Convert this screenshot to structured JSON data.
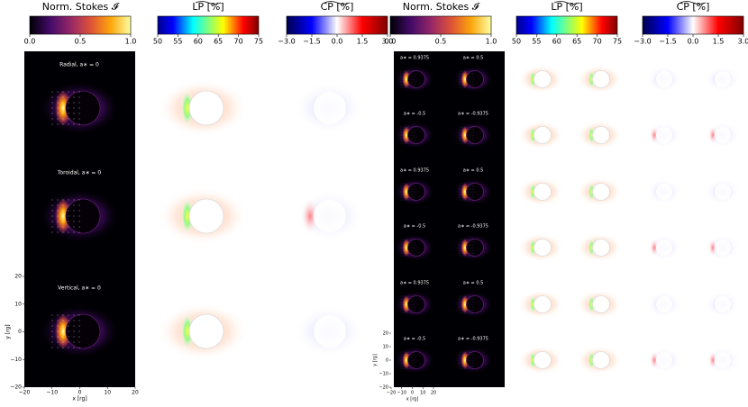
{
  "colorbars": [
    {
      "title": "Norm. Stokes 𝓘",
      "cmap": "inferno",
      "lim": [
        0,
        1
      ],
      "ticks": [
        {
          "value": 0,
          "label": "0.0"
        },
        0.5,
        {
          "value": 1,
          "label": "1.0"
        }
      ]
    },
    {
      "title": "LP [%]",
      "cmap": "jet",
      "lim": [
        50,
        75
      ],
      "ticks": [
        50,
        55,
        60,
        65,
        70,
        75
      ]
    },
    {
      "title": "CP [%]",
      "cmap": "seismic",
      "lim": [
        -3,
        3
      ],
      "ticks": [
        {
          "value": -3,
          "label": "−3.0"
        },
        {
          "value": -1.5,
          "label": "−1.5"
        },
        {
          "value": 0,
          "label": "0.0"
        },
        1.5,
        {
          "value": 3,
          "label": "3.0"
        }
      ]
    },
    {
      "title": "Norm. Stokes 𝓘",
      "cmap": "inferno",
      "lim": [
        0,
        1
      ],
      "ticks": [
        {
          "value": 0,
          "label": "0.0"
        },
        0.5,
        {
          "value": 1,
          "label": "1.0"
        }
      ]
    },
    {
      "title": "LP [%]",
      "cmap": "jet",
      "lim": [
        50,
        75
      ],
      "ticks": [
        50,
        55,
        60,
        65,
        70,
        75
      ]
    },
    {
      "title": "CP [%]",
      "cmap": "seismic",
      "lim": [
        -3,
        3
      ],
      "ticks": [
        {
          "value": -3,
          "label": "−3.0"
        },
        {
          "value": -1.5,
          "label": "−1.5"
        },
        {
          "value": 0,
          "label": "0.0"
        },
        1.5,
        {
          "value": 3,
          "label": "3.0"
        }
      ]
    }
  ],
  "left_panels": [
    "Radial, a∗ = 0",
    "Toroidal, a∗ = 0",
    "Vertical, a∗ = 0"
  ],
  "right_panels": [
    "a∗ = 0.9375",
    "a∗ = 0.5",
    "a∗ = -0.5",
    "a∗ = -0.9375",
    "a∗ = 0.9375",
    "a∗ = 0.5",
    "a∗ = -0.5",
    "a∗ = -0.9375",
    "a∗ = 0.9375",
    "a∗ = 0.5",
    "a∗ = -0.5",
    "a∗ = -0.9375"
  ],
  "left_axes": {
    "xlabel": "x [rg]",
    "ylabel": "y [rg]",
    "xlim": [
      -20,
      20
    ],
    "ylim": [
      -20,
      20
    ],
    "xticks": [
      {
        "value": -20,
        "label": "−20"
      },
      {
        "value": -10,
        "label": "−10"
      },
      0,
      10,
      20
    ],
    "yticks": [
      20,
      10,
      0,
      {
        "value": -10,
        "label": "−10"
      },
      {
        "value": -20,
        "label": "−20"
      }
    ]
  },
  "right_axes": {
    "xlabel": "x [rg]",
    "ylabel": "y [rg]",
    "xlim": [
      -20,
      20
    ],
    "ylim": [
      -20,
      20
    ],
    "xticks": [
      {
        "value": -20,
        "label": "−20"
      },
      {
        "value": -10,
        "label": "−10"
      },
      0,
      10,
      20
    ],
    "yticks": [
      20,
      10,
      0,
      {
        "value": -10,
        "label": "−10"
      },
      {
        "value": -20,
        "label": "−20"
      }
    ]
  }
}
